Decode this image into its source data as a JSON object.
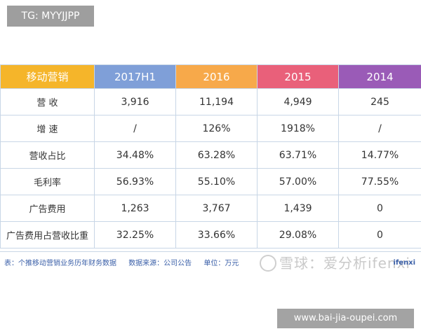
{
  "overlay": {
    "top_tag": "TG: MYYJJPP",
    "bottom_tag": "www.bai-jia-oupei.com"
  },
  "table": {
    "header": [
      {
        "label": "移动营销",
        "color": "#f5b52a"
      },
      {
        "label": "2017H1",
        "color": "#7f9fd8"
      },
      {
        "label": "2016",
        "color": "#f7a94a"
      },
      {
        "label": "2015",
        "color": "#e9607a"
      },
      {
        "label": "2014",
        "color": "#9a5bb7"
      }
    ],
    "rows": [
      {
        "label": "营 收",
        "values": [
          "3,916",
          "11,194",
          "4,949",
          "245"
        ]
      },
      {
        "label": "增 速",
        "values": [
          "/",
          "126%",
          "1918%",
          "/"
        ]
      },
      {
        "label": "营收占比",
        "values": [
          "34.48%",
          "63.28%",
          "63.71%",
          "14.77%"
        ]
      },
      {
        "label": "毛利率",
        "values": [
          "56.93%",
          "55.10%",
          "57.00%",
          "77.55%"
        ]
      },
      {
        "label": "广告费用",
        "values": [
          "1,263",
          "3,767",
          "1,439",
          "0"
        ]
      },
      {
        "label": "广告费用占营收比重",
        "values": [
          "32.25%",
          "33.66%",
          "29.08%",
          "0"
        ]
      }
    ]
  },
  "caption": {
    "table_note": "表：个推移动营销业务历年财务数据",
    "source": "数据来源：公司公告",
    "unit": "单位：万元"
  },
  "watermark": {
    "text": "雪球：爱分析ifenxi"
  },
  "brand": {
    "text": "ifenxi"
  }
}
